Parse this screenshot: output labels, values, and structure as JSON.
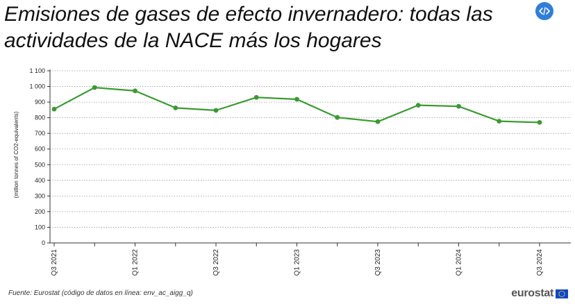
{
  "header": {
    "title": "Emisiones de gases de efecto invernadero: todas las actividades de la NACE más los hogares",
    "embed_icon": "code-embed-icon"
  },
  "chart_data": {
    "type": "line",
    "title": "Emisiones de gases de efecto invernadero: todas las actividades de la NACE más los hogares",
    "xlabel": "",
    "ylabel": "(million tonnes of CO2-equivalents)",
    "x": [
      "Q3 2021",
      "Q4 2021",
      "Q1 2022",
      "Q2 2022",
      "Q3 2022",
      "Q4 2022",
      "Q1 2023",
      "Q2 2023",
      "Q3 2023",
      "Q4 2023",
      "Q1 2024",
      "Q2 2024",
      "Q3 2024"
    ],
    "x_tick_labels": [
      "Q3 2021",
      "Q1 2022",
      "Q3 2022",
      "Q1 2023",
      "Q3 2023",
      "Q1 2024",
      "Q3 2024"
    ],
    "series": [
      {
        "values": [
          855,
          993,
          972,
          863,
          847,
          930,
          918,
          802,
          775,
          880,
          873,
          778,
          770
        ],
        "color": "#3a9a32"
      }
    ],
    "ylim": [
      0,
      1100
    ],
    "y_ticks": [
      0,
      100,
      200,
      300,
      400,
      500,
      600,
      700,
      800,
      900,
      1000,
      1100
    ],
    "y_tick_labels": [
      "0",
      "100",
      "200",
      "300",
      "400",
      "500",
      "600",
      "700",
      "800",
      "900",
      "1 000",
      "1 100"
    ],
    "grid": "horizontal-dotted",
    "legend": "none"
  },
  "footer": {
    "source": "Fuente: Eurostat (código de datos en línea: env_ac_aigg_q)",
    "logo_text": "eurostat",
    "flag_icon": "eu-flag-icon"
  }
}
